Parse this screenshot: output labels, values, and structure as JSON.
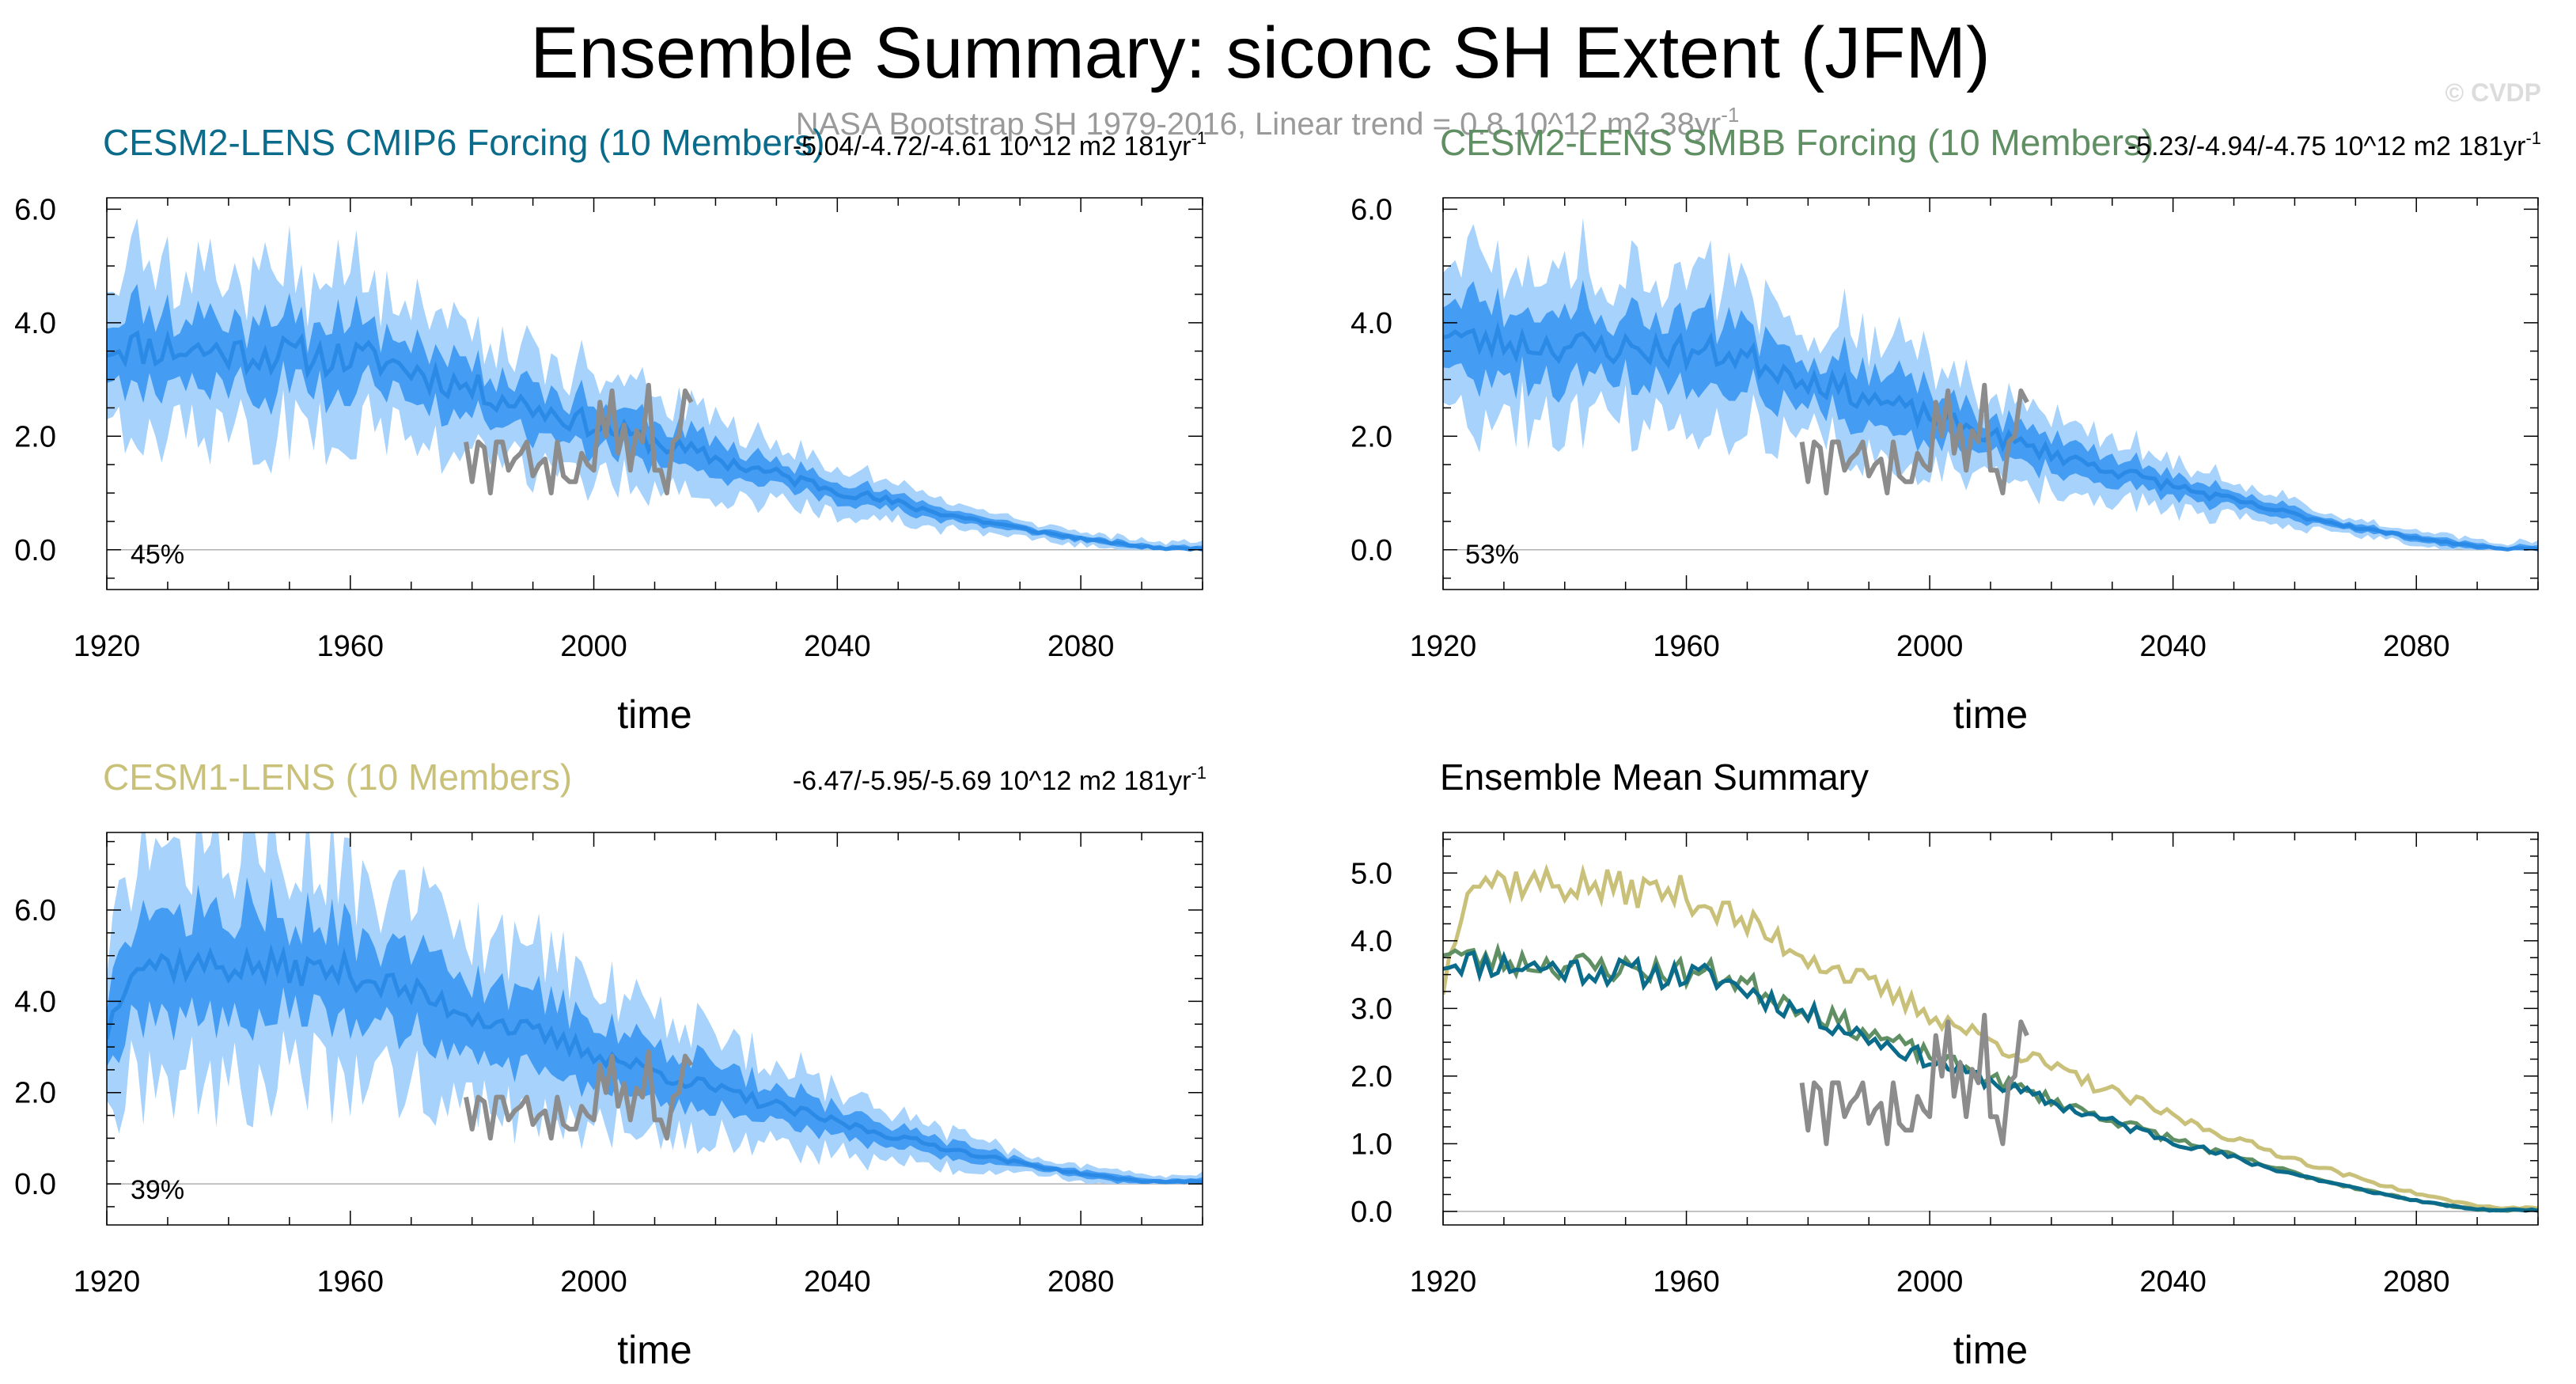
{
  "figure": {
    "title": "Ensemble Summary: siconc SH Extent (JFM)",
    "subtitle": "NASA Bootstrap SH 1979-2016, Linear trend = 0.8 10^12 m2 38yr",
    "subtitle_sup": "-1",
    "credit": "© CVDP"
  },
  "chart_data": [
    {
      "id": "cesm2-cmip6",
      "type": "area",
      "title": "CESM2-LENS CMIP6 Forcing (10 Members)",
      "title_color": "#0a6b8a",
      "trend_text": "-5.04/-4.72/-4.61 10^12 m2 181yr",
      "trend_sup": "-1",
      "percent_label": "45%",
      "xlabel": "time",
      "xlim": [
        1920,
        2100
      ],
      "x_ticks": [
        1920,
        1960,
        2000,
        2040,
        2080
      ],
      "x_tick_labels": [
        "1920",
        "1960",
        "2000",
        "2040",
        "2080"
      ],
      "ylim": [
        -0.7,
        6.2
      ],
      "y_ticks": [
        0,
        2,
        4,
        6
      ],
      "y_tick_labels": [
        "0.0",
        "2.0",
        "4.0",
        "6.0"
      ],
      "series": [
        {
          "role": "ensemble",
          "start": 1920,
          "end": 2100,
          "mean_start": 3.6,
          "mean_level": 3.6,
          "plateau_end": 1965,
          "decline_end": 2095,
          "final": 0.02,
          "spread_inner": 0.3,
          "spread_outer": 0.7,
          "noise": 0.35,
          "seed": 11,
          "color_mean": "#2b8ae6",
          "color_inner": "#3a96f2",
          "color_outer": "#a6d2fb"
        },
        {
          "role": "observed",
          "name": "NASA Bootstrap",
          "color": "#8c8c8c",
          "x_start": 1979,
          "values": [
            1.9,
            1.2,
            1.9,
            1.8,
            1.0,
            1.9,
            1.9,
            1.4,
            1.6,
            1.7,
            1.9,
            1.3,
            1.5,
            1.6,
            1.0,
            1.9,
            1.3,
            1.2,
            1.2,
            1.7,
            1.5,
            1.4,
            2.6,
            2.0,
            2.8,
            1.7,
            2.2,
            1.4,
            2.1,
            1.9,
            2.9,
            1.4,
            1.4,
            1.0,
            1.9,
            2.0,
            2.8,
            2.6
          ]
        }
      ]
    },
    {
      "id": "cesm2-smbb",
      "type": "area",
      "title": "CESM2-LENS SMBB Forcing (10 Members)",
      "title_color": "#5f8f62",
      "trend_text": "-5.23/-4.94/-4.75 10^12 m2 181yr",
      "trend_sup": "-1",
      "percent_label": "53%",
      "xlabel": "time",
      "xlim": [
        1920,
        2100
      ],
      "x_ticks": [
        1920,
        1960,
        2000,
        2040,
        2080
      ],
      "x_tick_labels": [
        "1920",
        "1960",
        "2000",
        "2040",
        "2080"
      ],
      "ylim": [
        -0.7,
        6.2
      ],
      "y_ticks": [
        0,
        2,
        4,
        6
      ],
      "y_tick_labels": [
        "0.0",
        "2.0",
        "4.0",
        "6.0"
      ],
      "series": [
        {
          "role": "ensemble",
          "start": 1920,
          "end": 2100,
          "mean_start": 3.9,
          "mean_level": 3.7,
          "plateau_end": 1968,
          "decline_end": 2095,
          "final": 0.02,
          "spread_inner": 0.3,
          "spread_outer": 0.65,
          "noise": 0.3,
          "seed": 23,
          "color_mean": "#2b8ae6",
          "color_inner": "#3a96f2",
          "color_outer": "#a6d2fb"
        },
        {
          "role": "observed",
          "name": "NASA Bootstrap",
          "color": "#8c8c8c",
          "x_start": 1979,
          "values": [
            1.9,
            1.2,
            1.9,
            1.8,
            1.0,
            1.9,
            1.9,
            1.4,
            1.6,
            1.7,
            1.9,
            1.3,
            1.5,
            1.6,
            1.0,
            1.9,
            1.3,
            1.2,
            1.2,
            1.7,
            1.5,
            1.4,
            2.6,
            2.0,
            2.8,
            1.7,
            2.2,
            1.4,
            2.1,
            1.9,
            2.9,
            1.4,
            1.4,
            1.0,
            1.9,
            2.0,
            2.8,
            2.6
          ]
        }
      ]
    },
    {
      "id": "cesm1",
      "type": "area",
      "title": "CESM1-LENS (10 Members)",
      "title_color": "#c9c179",
      "trend_text": "-6.47/-5.95/-5.69 10^12 m2 181yr",
      "trend_sup": "-1",
      "percent_label": "39%",
      "xlabel": "time",
      "xlim": [
        1920,
        2100
      ],
      "x_ticks": [
        1920,
        1960,
        2000,
        2040,
        2080
      ],
      "x_tick_labels": [
        "1920",
        "1960",
        "2000",
        "2040",
        "2080"
      ],
      "ylim": [
        -0.9,
        7.7
      ],
      "y_ticks": [
        0,
        2,
        4,
        6
      ],
      "y_tick_labels": [
        "0.0",
        "2.0",
        "4.0",
        "6.0"
      ],
      "series": [
        {
          "role": "ensemble",
          "start": 1920,
          "end": 2100,
          "mean_start": 3.3,
          "mean_level": 4.9,
          "plateau_end": 1960,
          "decline_end": 2092,
          "final": 0.05,
          "spread_inner": 0.4,
          "spread_outer": 0.9,
          "noise": 0.38,
          "seed": 37,
          "color_mean": "#2b8ae6",
          "color_inner": "#3a96f2",
          "color_outer": "#a6d2fb"
        },
        {
          "role": "observed",
          "name": "NASA Bootstrap",
          "color": "#8c8c8c",
          "x_start": 1979,
          "values": [
            1.9,
            1.2,
            1.9,
            1.8,
            1.0,
            1.9,
            1.9,
            1.4,
            1.6,
            1.7,
            1.9,
            1.3,
            1.5,
            1.6,
            1.0,
            1.9,
            1.3,
            1.2,
            1.2,
            1.7,
            1.5,
            1.4,
            2.6,
            2.0,
            2.8,
            1.7,
            2.2,
            1.4,
            2.1,
            1.9,
            2.9,
            1.4,
            1.4,
            1.0,
            1.9,
            2.0,
            2.8,
            2.6
          ]
        }
      ]
    },
    {
      "id": "ensemble-mean",
      "type": "line",
      "title": "Ensemble Mean Summary",
      "title_color": "#000000",
      "trend_text": "",
      "trend_sup": "",
      "percent_label": "",
      "xlabel": "time",
      "xlim": [
        1920,
        2100
      ],
      "x_ticks": [
        1920,
        1960,
        2000,
        2040,
        2080
      ],
      "x_tick_labels": [
        "1920",
        "1960",
        "2000",
        "2040",
        "2080"
      ],
      "ylim": [
        -0.2,
        5.6
      ],
      "y_ticks": [
        0,
        1,
        2,
        3,
        4,
        5
      ],
      "y_tick_labels": [
        "0.0",
        "1.0",
        "2.0",
        "3.0",
        "4.0",
        "5.0"
      ],
      "series": [
        {
          "role": "mean-line",
          "color": "#c9c179",
          "start": 1920,
          "end": 2100,
          "mean_start": 3.3,
          "mean_level": 4.95,
          "plateau_end": 1960,
          "decline_end": 2094,
          "final": 0.05,
          "noise": 0.28,
          "seed": 37
        },
        {
          "role": "mean-line",
          "color": "#5f8f62",
          "start": 1920,
          "end": 2100,
          "mean_start": 3.9,
          "mean_level": 3.75,
          "plateau_end": 1966,
          "decline_end": 2092,
          "final": 0.02,
          "noise": 0.22,
          "seed": 23
        },
        {
          "role": "mean-line",
          "color": "#0a6b8a",
          "start": 1920,
          "end": 2100,
          "mean_start": 3.7,
          "mean_level": 3.7,
          "plateau_end": 1965,
          "decline_end": 2092,
          "final": 0.02,
          "noise": 0.22,
          "seed": 11
        },
        {
          "role": "observed",
          "name": "NASA Bootstrap",
          "color": "#8c8c8c",
          "x_start": 1979,
          "values": [
            1.9,
            1.2,
            1.9,
            1.8,
            1.0,
            1.9,
            1.9,
            1.4,
            1.6,
            1.7,
            1.9,
            1.3,
            1.5,
            1.6,
            1.0,
            1.9,
            1.3,
            1.2,
            1.2,
            1.7,
            1.5,
            1.4,
            2.6,
            2.0,
            2.8,
            1.7,
            2.2,
            1.4,
            2.1,
            1.9,
            2.9,
            1.4,
            1.4,
            1.0,
            1.9,
            2.0,
            2.8,
            2.6
          ]
        }
      ]
    }
  ]
}
